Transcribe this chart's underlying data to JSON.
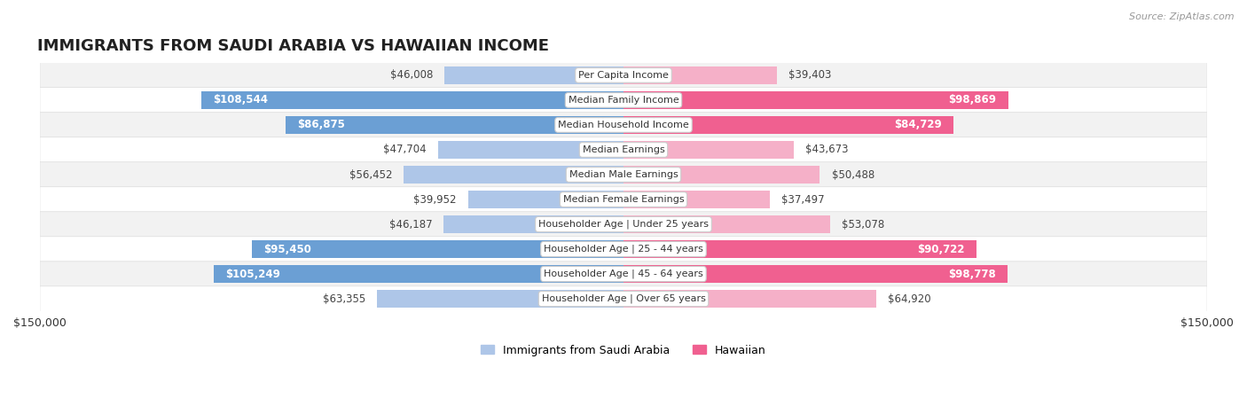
{
  "title": "IMMIGRANTS FROM SAUDI ARABIA VS HAWAIIAN INCOME",
  "source": "Source: ZipAtlas.com",
  "categories": [
    "Per Capita Income",
    "Median Family Income",
    "Median Household Income",
    "Median Earnings",
    "Median Male Earnings",
    "Median Female Earnings",
    "Householder Age | Under 25 years",
    "Householder Age | 25 - 44 years",
    "Householder Age | 45 - 64 years",
    "Householder Age | Over 65 years"
  ],
  "saudi_values": [
    46008,
    108544,
    86875,
    47704,
    56452,
    39952,
    46187,
    95450,
    105249,
    63355
  ],
  "hawaiian_values": [
    39403,
    98869,
    84729,
    43673,
    50488,
    37497,
    53078,
    90722,
    98778,
    64920
  ],
  "saudi_labels": [
    "$46,008",
    "$108,544",
    "$86,875",
    "$47,704",
    "$56,452",
    "$39,952",
    "$46,187",
    "$95,450",
    "$105,249",
    "$63,355"
  ],
  "hawaiian_labels": [
    "$39,403",
    "$98,869",
    "$84,729",
    "$43,673",
    "$50,488",
    "$37,497",
    "$53,078",
    "$90,722",
    "$98,778",
    "$64,920"
  ],
  "saudi_color_light": "#aec6e8",
  "saudi_color_strong": "#6b9fd4",
  "hawaiian_color_light": "#f5b0c8",
  "hawaiian_color_strong": "#f06090",
  "threshold": 75000,
  "max_value": 150000,
  "bar_height": 0.72,
  "bg_color": "#ffffff",
  "row_colors": [
    "#f2f2f2",
    "#ffffff"
  ],
  "title_fontsize": 13,
  "label_fontsize": 8.5,
  "category_fontsize": 8.0
}
